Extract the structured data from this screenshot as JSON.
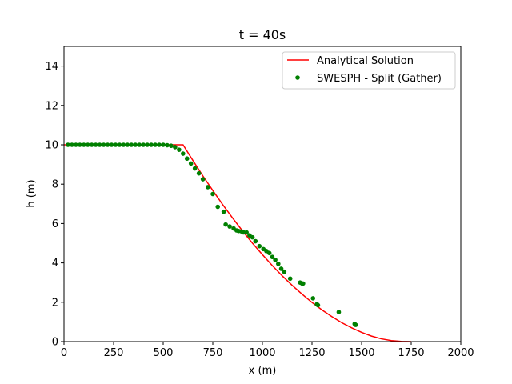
{
  "chart_data": {
    "type": "line",
    "title": "t = 40s",
    "xlabel": "x (m)",
    "ylabel": "h (m)",
    "xlim": [
      0,
      2000
    ],
    "ylim": [
      0,
      15
    ],
    "xticks": [
      0,
      250,
      500,
      750,
      1000,
      1250,
      1500,
      1750,
      2000
    ],
    "yticks": [
      0,
      2,
      4,
      6,
      8,
      10,
      12,
      14
    ],
    "grid": false,
    "legend_position": "top-right",
    "series": [
      {
        "name": "Analytical Solution",
        "kind": "line",
        "color": "#ff0000",
        "x": [
          0,
          600,
          650,
          700,
          750,
          800,
          850,
          900,
          950,
          1000,
          1050,
          1100,
          1150,
          1200,
          1250,
          1300,
          1350,
          1400,
          1450,
          1500,
          1550,
          1600,
          1650,
          1700,
          1750
        ],
        "y": [
          10,
          10,
          9.2,
          8.42,
          7.68,
          6.96,
          6.28,
          5.62,
          5.0,
          4.42,
          3.86,
          3.34,
          2.86,
          2.41,
          1.99,
          1.61,
          1.27,
          0.96,
          0.7,
          0.47,
          0.28,
          0.14,
          0.05,
          0.01,
          0
        ]
      },
      {
        "name": "SWESPH - Split (Gather)",
        "kind": "scatter",
        "color": "#008000",
        "x": [
          20,
          40,
          60,
          80,
          100,
          120,
          140,
          160,
          180,
          200,
          220,
          240,
          260,
          280,
          300,
          320,
          340,
          360,
          380,
          400,
          420,
          440,
          460,
          480,
          500,
          520,
          540,
          560,
          580,
          600,
          620,
          640,
          660,
          680,
          700,
          725,
          750,
          775,
          805,
          815,
          835,
          855,
          870,
          880,
          895,
          905,
          920,
          935,
          950,
          965,
          985,
          1005,
          1020,
          1035,
          1050,
          1065,
          1080,
          1095,
          1110,
          1140,
          1190,
          1200,
          1205,
          1255,
          1275,
          1280,
          1385,
          1465,
          1470
        ],
        "y": [
          10,
          10,
          10,
          10,
          10,
          10,
          10,
          10,
          10,
          10,
          10,
          10,
          10,
          10,
          10,
          10,
          10,
          10,
          10,
          10,
          10,
          10,
          10,
          10,
          10,
          9.98,
          9.95,
          9.88,
          9.75,
          9.55,
          9.3,
          9.05,
          8.8,
          8.55,
          8.25,
          7.85,
          7.5,
          6.85,
          6.6,
          5.95,
          5.85,
          5.75,
          5.65,
          5.62,
          5.6,
          5.55,
          5.55,
          5.4,
          5.3,
          5.1,
          4.85,
          4.7,
          4.6,
          4.5,
          4.3,
          4.15,
          3.95,
          3.7,
          3.55,
          3.2,
          3.0,
          2.95,
          2.95,
          2.2,
          1.9,
          1.85,
          1.5,
          0.9,
          0.85
        ]
      }
    ]
  }
}
